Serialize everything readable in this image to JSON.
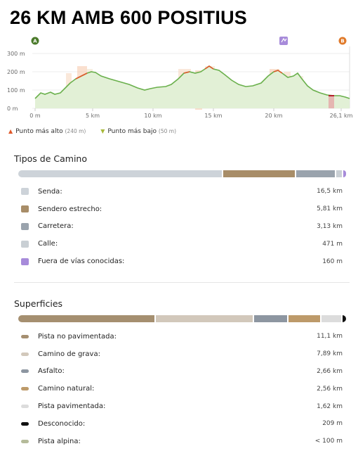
{
  "title": "26 KM AMB 600 POSITIUS",
  "profile": {
    "y_ticks": [
      "300 m",
      "200 m",
      "100 m",
      "0 m"
    ],
    "x_ticks": [
      "0 m",
      "5 km",
      "10 km",
      "15 km",
      "20 km",
      "26,1 km"
    ],
    "markers": {
      "start": "A",
      "end": "B"
    },
    "line_color": "#6ab04c",
    "fill_color": "#e2f0d6"
  },
  "legend": {
    "high_label": "Punto más alto",
    "high_value": "(240 m)",
    "low_label": "Punto más bajo",
    "low_value": "(50 m)",
    "high_color": "#e0582a",
    "low_color": "#a8b83a"
  },
  "way_types": {
    "title": "Tipos de Camino",
    "bar": [
      {
        "color": "#cdd3d9",
        "frac": 0.632
      },
      {
        "color": "#a88d68",
        "frac": 0.222
      },
      {
        "color": "#9aa3ad",
        "frac": 0.12
      },
      {
        "color": "#c9cfd4",
        "frac": 0.018
      },
      {
        "color": "#a78bda",
        "frac": 0.008
      }
    ],
    "items": [
      {
        "label": "Senda:",
        "value": "16,5 km",
        "color": "#cdd3d9"
      },
      {
        "label": "Sendero estrecho:",
        "value": "5,81 km",
        "color": "#a88d68"
      },
      {
        "label": "Carretera:",
        "value": "3,13 km",
        "color": "#9aa3ad"
      },
      {
        "label": "Calle:",
        "value": "471 m",
        "color": "#c9cfd4"
      },
      {
        "label": "Fuera de vías conocidas:",
        "value": "160 m",
        "color": "#a78bda"
      }
    ]
  },
  "surfaces": {
    "title": "Superficies",
    "bar": [
      {
        "color": "#a58f70",
        "frac": 0.425
      },
      {
        "color": "#d2c8bb",
        "frac": 0.302
      },
      {
        "color": "#8d96a1",
        "frac": 0.102
      },
      {
        "color": "#bd9a6a",
        "frac": 0.098
      },
      {
        "color": "#dcdcdc",
        "frac": 0.062
      },
      {
        "color": "#111111",
        "frac": 0.011
      }
    ],
    "items": [
      {
        "label": "Pista no pavimentada:",
        "value": "11,1 km",
        "color": "#a58f70"
      },
      {
        "label": "Camino de grava:",
        "value": "7,89 km",
        "color": "#d2c8bb"
      },
      {
        "label": "Asfalto:",
        "value": "2,66 km",
        "color": "#8d96a1"
      },
      {
        "label": "Camino natural:",
        "value": "2,56 km",
        "color": "#bd9a6a"
      },
      {
        "label": "Pista pavimentada:",
        "value": "1,62 km",
        "color": "#dcdcdc"
      },
      {
        "label": "Desconocido:",
        "value": "209 m",
        "color": "#111111"
      },
      {
        "label": "Pista alpina:",
        "value": "< 100 m",
        "color": "#b5bb9a"
      }
    ]
  }
}
